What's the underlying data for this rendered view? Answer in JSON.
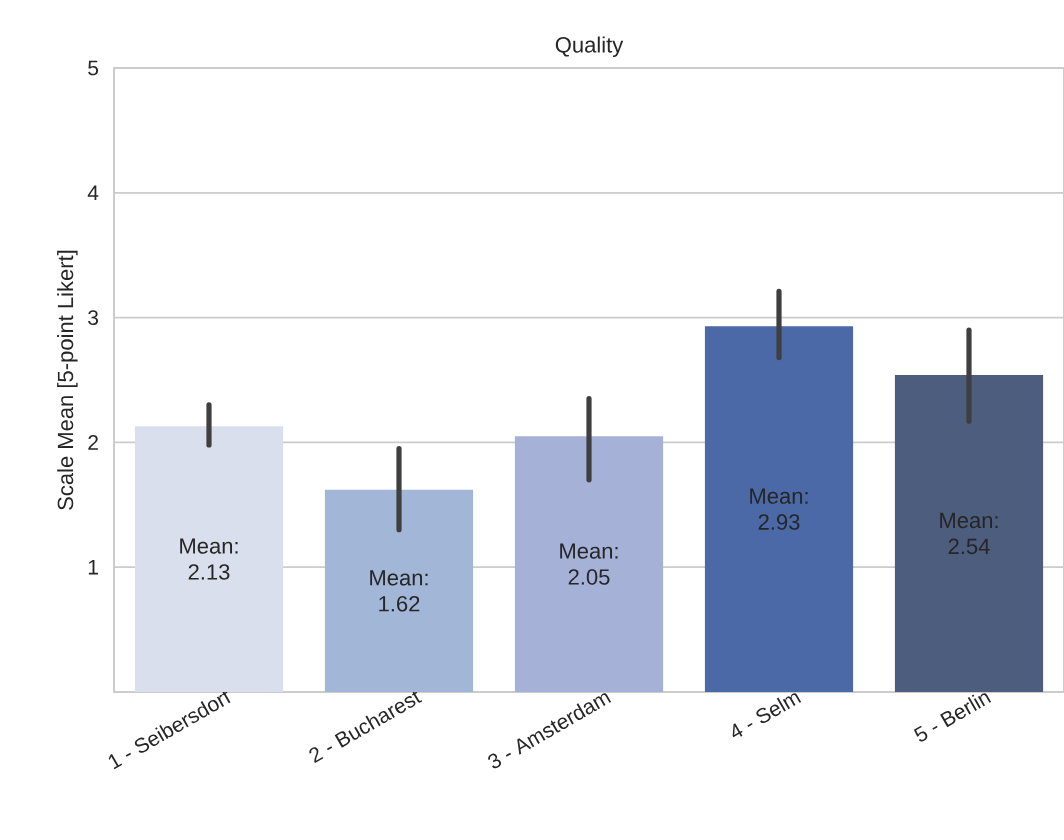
{
  "chart_data": {
    "type": "bar",
    "title": "Quality",
    "ylabel": "Scale Mean [5-point Likert]",
    "categories": [
      "1 - Seibersdorf",
      "2 - Bucharest",
      "3 - Amsterdam",
      "4 - Selm",
      "5 - Berlin"
    ],
    "values": [
      2.13,
      1.62,
      2.05,
      2.93,
      2.54
    ],
    "colors": [
      "#d9dfec",
      "#a2b6d7",
      "#a5b1d6",
      "#4a69a6",
      "#4c5d7e"
    ],
    "errors": [
      [
        1.98,
        2.3
      ],
      [
        1.3,
        1.95
      ],
      [
        1.7,
        2.35
      ],
      [
        2.68,
        3.21
      ],
      [
        2.17,
        2.9
      ]
    ],
    "value_labels": [
      "Mean: 2.13",
      "Mean: 1.62",
      "Mean: 2.05",
      "Mean: 2.93",
      "Mean: 2.54"
    ],
    "ylim": [
      0,
      5
    ],
    "yticks": [
      1,
      2,
      3,
      4,
      5
    ],
    "grid": "y"
  }
}
